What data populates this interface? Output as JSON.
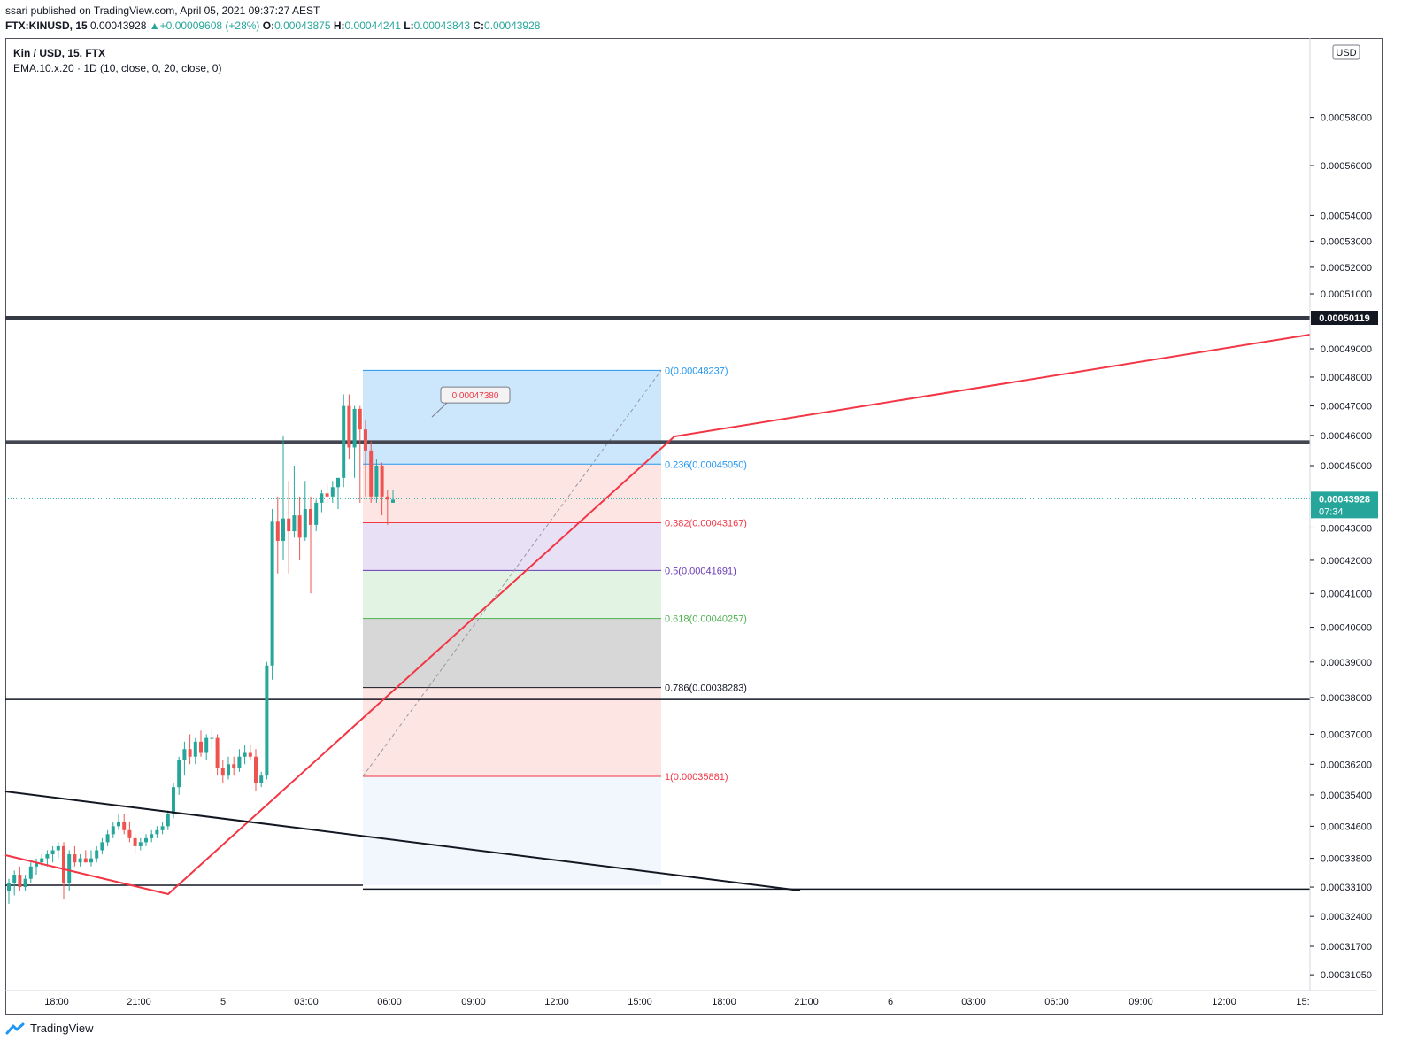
{
  "header": {
    "publisher": "ssari published on TradingView.com, April 05, 2021 09:37:27 AEST",
    "symbol": "FTX:KINUSD, 15",
    "last": "0.00043928",
    "change_arrow": "▲",
    "change": "+0.00009608 (+28%)",
    "o_label": "O:",
    "o": "0.00043875",
    "h_label": "H:",
    "h": "0.00044241",
    "l_label": "L:",
    "l": "0.00043843",
    "c_label": "C:",
    "c": "0.00043928"
  },
  "legend": {
    "title": "Kin / USD, 15, FTX",
    "indicator": "EMA.10.x.20 · 1D (10, close, 0, 20, close, 0)"
  },
  "currency_button": "USD",
  "footer": {
    "brand": "TradingView"
  },
  "colors": {
    "up": "#26a69a",
    "down": "#ef5350",
    "trend": "#f23645",
    "level": "#131722"
  },
  "chart_data": {
    "type": "candlestick",
    "y_scale": "log",
    "y_ticks": [
      "0.00058000",
      "0.00056000",
      "0.00054000",
      "0.00053000",
      "0.00052000",
      "0.00051000",
      "0.00049000",
      "0.00048000",
      "0.00047000",
      "0.00046000",
      "0.00045000",
      "0.00043000",
      "0.00042000",
      "0.00041000",
      "0.00040000",
      "0.00039000",
      "0.00038000",
      "0.00037000",
      "0.00036200",
      "0.00035400",
      "0.00034600",
      "0.00033800",
      "0.00033100",
      "0.00032400",
      "0.00031700",
      "0.00031050"
    ],
    "x_ticks": [
      "18:00",
      "21:00",
      "5",
      "03:00",
      "06:00",
      "09:00",
      "12:00",
      "15:00",
      "18:00",
      "21:00",
      "6",
      "03:00",
      "06:00",
      "09:00",
      "12:00",
      "15:"
    ],
    "price_markers": [
      {
        "value": "0.00050119",
        "style": "dark"
      },
      {
        "value": "0.00043928",
        "sub": "07:34",
        "style": "green"
      }
    ],
    "callout": "0.00047380",
    "fibonacci": [
      {
        "label": "0(0.00048237)",
        "level": 0,
        "price": 0.00048237,
        "color": "#2196f3"
      },
      {
        "label": "0.236(0.00045050)",
        "level": 0.236,
        "price": 0.0004505,
        "color": "#2196f3"
      },
      {
        "label": "0.382(0.00043167)",
        "level": 0.382,
        "price": 0.00043167,
        "color": "#f23645"
      },
      {
        "label": "0.5(0.00041691)",
        "level": 0.5,
        "price": 0.00041691,
        "color": "#673ab7"
      },
      {
        "label": "0.618(0.00040257)",
        "level": 0.618,
        "price": 0.00040257,
        "color": "#4caf50"
      },
      {
        "label": "0.786(0.00038283)",
        "level": 0.786,
        "price": 0.00038283,
        "color": "#131722"
      },
      {
        "label": "1(0.00035881)",
        "level": 1,
        "price": 0.00035881,
        "color": "#f23645"
      }
    ],
    "horizontal_levels": [
      0.00050119,
      0.0004578,
      0.0003795,
      0.0003305
    ],
    "candles": [
      {
        "o": 0.00033,
        "h": 0.000333,
        "l": 0.000327,
        "c": 0.000332
      },
      {
        "o": 0.000332,
        "h": 0.000335,
        "l": 0.000329,
        "c": 0.000334
      },
      {
        "o": 0.000334,
        "h": 0.000336,
        "l": 0.00033,
        "c": 0.000331
      },
      {
        "o": 0.000331,
        "h": 0.000334,
        "l": 0.00033,
        "c": 0.000333
      },
      {
        "o": 0.000333,
        "h": 0.000337,
        "l": 0.000332,
        "c": 0.000336
      },
      {
        "o": 0.000336,
        "h": 0.000338,
        "l": 0.000334,
        "c": 0.000337
      },
      {
        "o": 0.000337,
        "h": 0.000339,
        "l": 0.000336,
        "c": 0.000338
      },
      {
        "o": 0.000338,
        "h": 0.00034,
        "l": 0.000336,
        "c": 0.000339
      },
      {
        "o": 0.000339,
        "h": 0.000341,
        "l": 0.000337,
        "c": 0.00034
      },
      {
        "o": 0.00034,
        "h": 0.000342,
        "l": 0.000338,
        "c": 0.000341
      },
      {
        "o": 0.000341,
        "h": 0.000342,
        "l": 0.000328,
        "c": 0.000332
      },
      {
        "o": 0.000332,
        "h": 0.00034,
        "l": 0.00033,
        "c": 0.000339
      },
      {
        "o": 0.000339,
        "h": 0.000341,
        "l": 0.000336,
        "c": 0.000337
      },
      {
        "o": 0.000337,
        "h": 0.000339,
        "l": 0.000336,
        "c": 0.000338
      },
      {
        "o": 0.000338,
        "h": 0.00034,
        "l": 0.000337,
        "c": 0.000337
      },
      {
        "o": 0.000337,
        "h": 0.00034,
        "l": 0.000336,
        "c": 0.000338
      },
      {
        "o": 0.000338,
        "h": 0.000341,
        "l": 0.000337,
        "c": 0.00034
      },
      {
        "o": 0.00034,
        "h": 0.000343,
        "l": 0.000339,
        "c": 0.000342
      },
      {
        "o": 0.000342,
        "h": 0.000345,
        "l": 0.000341,
        "c": 0.000344
      },
      {
        "o": 0.000344,
        "h": 0.000347,
        "l": 0.000343,
        "c": 0.000346
      },
      {
        "o": 0.000346,
        "h": 0.000349,
        "l": 0.000345,
        "c": 0.000347
      },
      {
        "o": 0.000347,
        "h": 0.000349,
        "l": 0.000344,
        "c": 0.000345
      },
      {
        "o": 0.000345,
        "h": 0.000347,
        "l": 0.000342,
        "c": 0.000343
      },
      {
        "o": 0.000343,
        "h": 0.000344,
        "l": 0.000339,
        "c": 0.000341
      },
      {
        "o": 0.000341,
        "h": 0.000343,
        "l": 0.00034,
        "c": 0.000342
      },
      {
        "o": 0.000342,
        "h": 0.000344,
        "l": 0.000341,
        "c": 0.000343
      },
      {
        "o": 0.000343,
        "h": 0.000345,
        "l": 0.000342,
        "c": 0.000344
      },
      {
        "o": 0.000344,
        "h": 0.000346,
        "l": 0.000343,
        "c": 0.000345
      },
      {
        "o": 0.000345,
        "h": 0.000347,
        "l": 0.000344,
        "c": 0.000346
      },
      {
        "o": 0.000346,
        "h": 0.00035,
        "l": 0.000345,
        "c": 0.000349
      },
      {
        "o": 0.000349,
        "h": 0.000357,
        "l": 0.000348,
        "c": 0.000356
      },
      {
        "o": 0.000356,
        "h": 0.000364,
        "l": 0.000354,
        "c": 0.000363
      },
      {
        "o": 0.000363,
        "h": 0.000368,
        "l": 0.000359,
        "c": 0.000366
      },
      {
        "o": 0.000366,
        "h": 0.00037,
        "l": 0.000362,
        "c": 0.000364
      },
      {
        "o": 0.000364,
        "h": 0.000369,
        "l": 0.000362,
        "c": 0.000368
      },
      {
        "o": 0.000368,
        "h": 0.000371,
        "l": 0.000364,
        "c": 0.000365
      },
      {
        "o": 0.000365,
        "h": 0.00037,
        "l": 0.000363,
        "c": 0.000369
      },
      {
        "o": 0.000369,
        "h": 0.000371,
        "l": 0.000366,
        "c": 0.000369
      },
      {
        "o": 0.000369,
        "h": 0.00037,
        "l": 0.000359,
        "c": 0.000361
      },
      {
        "o": 0.000361,
        "h": 0.000363,
        "l": 0.000357,
        "c": 0.000359
      },
      {
        "o": 0.000359,
        "h": 0.000364,
        "l": 0.000358,
        "c": 0.000362
      },
      {
        "o": 0.000362,
        "h": 0.000364,
        "l": 0.000359,
        "c": 0.000361
      },
      {
        "o": 0.000361,
        "h": 0.000366,
        "l": 0.00036,
        "c": 0.000364
      },
      {
        "o": 0.000364,
        "h": 0.000367,
        "l": 0.000362,
        "c": 0.000365
      },
      {
        "o": 0.000365,
        "h": 0.000367,
        "l": 0.000363,
        "c": 0.000364
      },
      {
        "o": 0.000364,
        "h": 0.000366,
        "l": 0.000355,
        "c": 0.000357
      },
      {
        "o": 0.000357,
        "h": 0.00036,
        "l": 0.000356,
        "c": 0.000359
      },
      {
        "o": 0.000359,
        "h": 0.00039,
        "l": 0.000358,
        "c": 0.000389
      },
      {
        "o": 0.000389,
        "h": 0.000436,
        "l": 0.000385,
        "c": 0.000432
      },
      {
        "o": 0.000432,
        "h": 0.00044,
        "l": 0.000416,
        "c": 0.000426
      },
      {
        "o": 0.000426,
        "h": 0.00046,
        "l": 0.00042,
        "c": 0.000433
      },
      {
        "o": 0.000433,
        "h": 0.000445,
        "l": 0.000416,
        "c": 0.000429
      },
      {
        "o": 0.000429,
        "h": 0.00045,
        "l": 0.000427,
        "c": 0.000434
      },
      {
        "o": 0.000434,
        "h": 0.00044,
        "l": 0.00042,
        "c": 0.000427
      },
      {
        "o": 0.000427,
        "h": 0.000445,
        "l": 0.000426,
        "c": 0.000436
      },
      {
        "o": 0.000436,
        "h": 0.00044,
        "l": 0.00041,
        "c": 0.000431
      },
      {
        "o": 0.000431,
        "h": 0.000439,
        "l": 0.000429,
        "c": 0.000438
      },
      {
        "o": 0.000438,
        "h": 0.000442,
        "l": 0.000435,
        "c": 0.000441
      },
      {
        "o": 0.000441,
        "h": 0.000444,
        "l": 0.000438,
        "c": 0.00044
      },
      {
        "o": 0.00044,
        "h": 0.000445,
        "l": 0.000438,
        "c": 0.000443
      },
      {
        "o": 0.000443,
        "h": 0.000446,
        "l": 0.000436,
        "c": 0.000446
      },
      {
        "o": 0.000446,
        "h": 0.000474,
        "l": 0.000443,
        "c": 0.00047
      },
      {
        "o": 0.00047,
        "h": 0.000474,
        "l": 0.000452,
        "c": 0.000456
      },
      {
        "o": 0.000456,
        "h": 0.00047,
        "l": 0.000446,
        "c": 0.000469
      },
      {
        "o": 0.000469,
        "h": 0.00047,
        "l": 0.000438,
        "c": 0.000462
      },
      {
        "o": 0.000462,
        "h": 0.000465,
        "l": 0.00044,
        "c": 0.000455
      },
      {
        "o": 0.000455,
        "h": 0.000458,
        "l": 0.000438,
        "c": 0.00044
      },
      {
        "o": 0.00044,
        "h": 0.000452,
        "l": 0.000438,
        "c": 0.00045
      },
      {
        "o": 0.00045,
        "h": 0.000451,
        "l": 0.000434,
        "c": 0.00044
      },
      {
        "o": 0.00044,
        "h": 0.000442,
        "l": 0.000431,
        "c": 0.000439
      },
      {
        "o": 0.000438,
        "h": 0.000442,
        "l": 0.000438,
        "c": 0.000439
      }
    ]
  }
}
